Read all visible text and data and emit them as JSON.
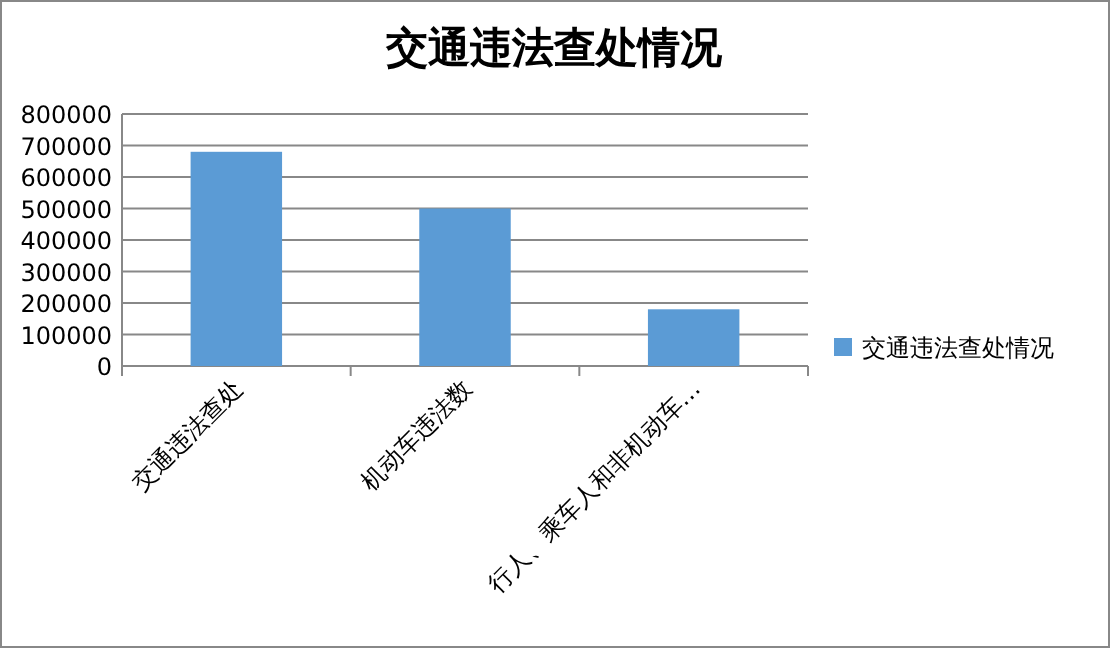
{
  "chart_data": {
    "type": "bar",
    "title": "交通违法查处情况",
    "categories": [
      "交通违法查处",
      "机动车违法数",
      "行人、乘车人和非机动车…"
    ],
    "series": [
      {
        "name": "交通违法查处情况",
        "color": "#5b9bd5",
        "values": [
          680000,
          500000,
          180000
        ]
      }
    ],
    "ylim": [
      0,
      800000
    ],
    "yticks": [
      0,
      100000,
      200000,
      300000,
      400000,
      500000,
      600000,
      700000,
      800000
    ],
    "grid": "y",
    "legend": "right"
  }
}
